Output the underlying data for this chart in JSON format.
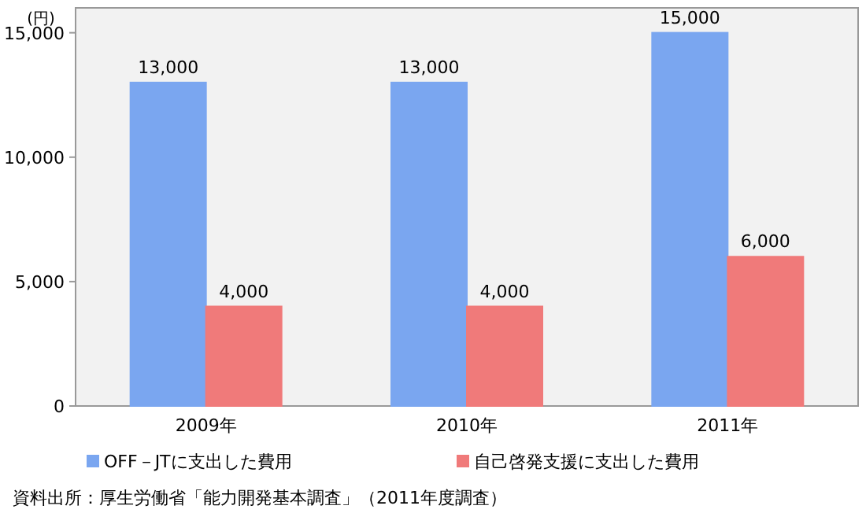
{
  "chart_data": {
    "type": "bar",
    "ylabel": "(円)",
    "categories": [
      "2009年",
      "2010年",
      "2011年"
    ],
    "series": [
      {
        "name": "OFF－JTに支出した費用",
        "color": "#7aa6f0",
        "values": [
          13000,
          13000,
          15000
        ]
      },
      {
        "name": "自己啓発支援に支出した費用",
        "color": "#f07a7a",
        "values": [
          4000,
          4000,
          6000
        ]
      }
    ],
    "ylim": [
      0,
      16000
    ],
    "yticks": [
      0,
      {
        "value": 5000,
        "label": "5,000"
      },
      {
        "value": 10000,
        "label": "10,000"
      },
      {
        "value": 15000,
        "label": "15,000"
      }
    ],
    "value_labels": [
      [
        "13,000",
        "13,000",
        "15,000"
      ],
      [
        "4,000",
        "4,000",
        "6,000"
      ]
    ],
    "legend": "bottom",
    "grid": false,
    "annotations": [
      "資料出所：厚生労働省「能力開発基本調査」（2011年度調査）"
    ]
  }
}
